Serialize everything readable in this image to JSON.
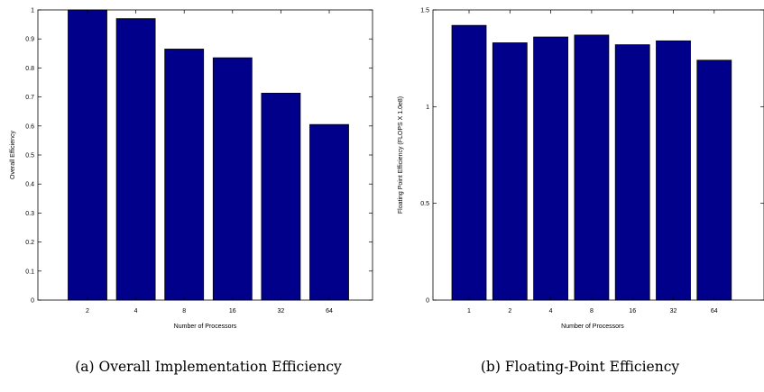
{
  "chart_data": [
    {
      "type": "bar",
      "categories": [
        "2",
        "4",
        "8",
        "16",
        "32",
        "64"
      ],
      "values": [
        1.0,
        0.97,
        0.865,
        0.835,
        0.713,
        0.605
      ],
      "xlabel": "Number of Processors",
      "ylabel": "Overall Efficiency",
      "ylim": [
        0,
        1
      ],
      "yticks": [
        0,
        0.1,
        0.2,
        0.3,
        0.4,
        0.5,
        0.6,
        0.7,
        0.8,
        0.9,
        1
      ],
      "caption": "(a) Overall Implementation Efficiency",
      "bar_color": "#00008b",
      "grid": false
    },
    {
      "type": "bar",
      "categories": [
        "1",
        "2",
        "4",
        "8",
        "16",
        "32",
        "64"
      ],
      "values": [
        1.42,
        1.33,
        1.36,
        1.37,
        1.32,
        1.34,
        1.24
      ],
      "xlabel": "Number of Processors",
      "ylabel": "Floating Point Efficiency (FLOPS X 1.0e8)",
      "ylim": [
        0,
        1.5
      ],
      "yticks": [
        0,
        0.5,
        1,
        1.5
      ],
      "caption": "(b) Floating-Point Efficiency",
      "bar_color": "#00008b",
      "grid": false
    }
  ]
}
